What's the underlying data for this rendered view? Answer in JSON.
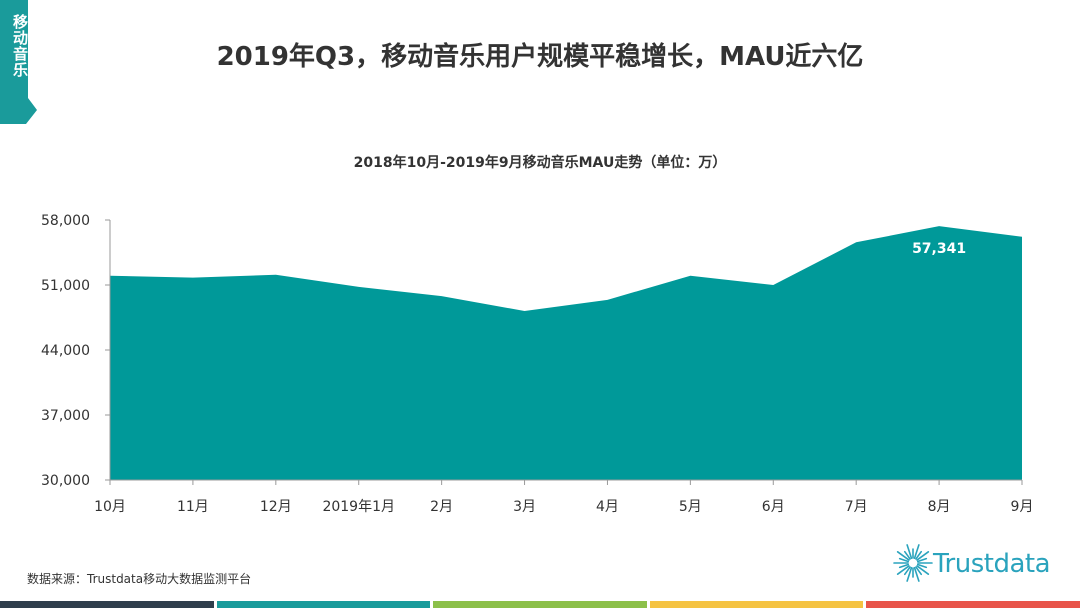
{
  "side_tab": {
    "label": "移动音乐",
    "color": "#1a9b9b"
  },
  "page_title": "2019年Q3，移动音乐用户规模平稳增长，MAU近六亿",
  "source_note": "数据来源：Trustdata移动大数据监测平台",
  "logo": {
    "text": "Trustdata",
    "color": "#2aa3bd",
    "icon": "starburst-logo-icon"
  },
  "footer_colors": [
    "#2f3e4c",
    "#1a9b9b",
    "#8cc04a",
    "#f5c342",
    "#e8544a"
  ],
  "chart_data": {
    "type": "area",
    "title": "2018年10月-2019年9月移动音乐MAU走势（单位：万）",
    "categories": [
      "10月",
      "11月",
      "12月",
      "2019年1月",
      "2月",
      "3月",
      "4月",
      "5月",
      "6月",
      "7月",
      "8月",
      "9月"
    ],
    "series": [
      {
        "values": [
          52000,
          51800,
          52100,
          50800,
          49800,
          48200,
          49400,
          52000,
          51000,
          55600,
          57341,
          56200
        ]
      }
    ],
    "ylim": [
      30000,
      58000
    ],
    "yticks": [
      "30,000",
      "37,000",
      "44,000",
      "51,000",
      "58,000"
    ],
    "ytick_values": [
      30000,
      37000,
      44000,
      51000,
      58000
    ],
    "annotations": [
      {
        "category": "8月",
        "label": "57,341"
      }
    ],
    "color": "#009999",
    "grid": false
  }
}
